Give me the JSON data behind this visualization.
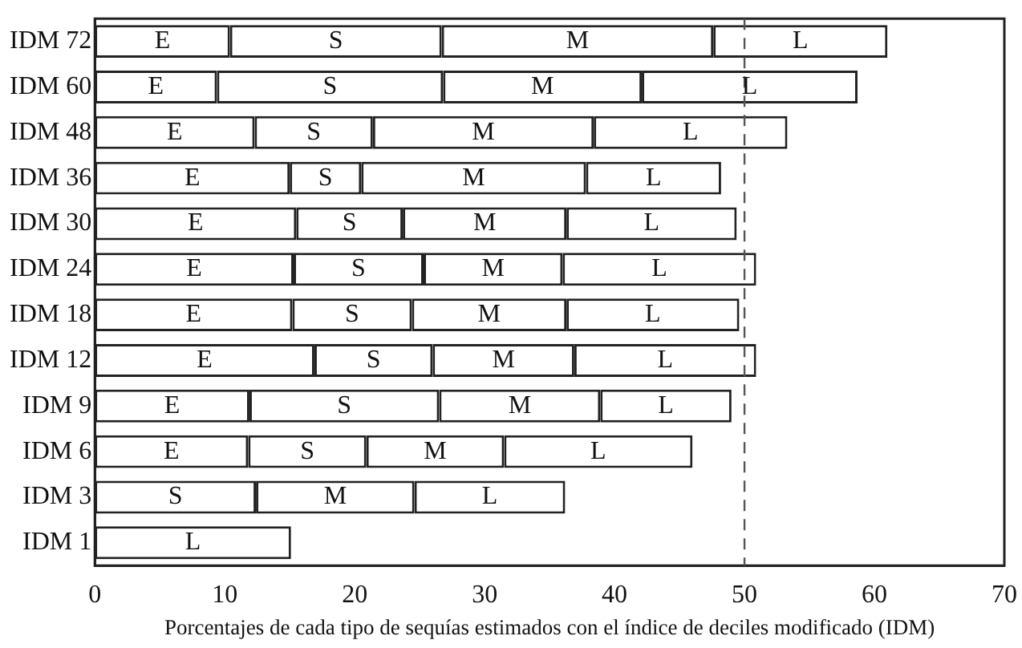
{
  "chart_data": {
    "type": "bar",
    "orientation": "horizontal",
    "stacked": true,
    "xlabel": "Porcentajes de cada tipo de sequías estimados con el índice de deciles modificado (IDM)",
    "categories": [
      "IDM 72",
      "IDM 60",
      "IDM 48",
      "IDM 36",
      "IDM 30",
      "IDM 24",
      "IDM 18",
      "IDM 12",
      "IDM 9",
      "IDM 6",
      "IDM 3",
      "IDM 1"
    ],
    "series": [
      {
        "name": "E",
        "color": "#ffffff",
        "values": [
          10.4,
          9.4,
          12.3,
          15.0,
          15.5,
          15.3,
          15.2,
          16.9,
          11.9,
          11.8,
          null,
          null
        ]
      },
      {
        "name": "S",
        "color": "#ffffff",
        "values": [
          16.3,
          17.4,
          9.1,
          5.5,
          8.2,
          10.0,
          9.2,
          9.1,
          14.6,
          9.1,
          12.4,
          null
        ]
      },
      {
        "name": "M",
        "color": "#ffffff",
        "values": [
          20.9,
          15.3,
          17.0,
          17.3,
          12.6,
          10.7,
          11.9,
          10.9,
          12.4,
          10.6,
          12.2,
          null
        ]
      },
      {
        "name": "L",
        "color": "#ffffff",
        "values": [
          13.4,
          16.6,
          14.9,
          10.4,
          13.1,
          14.9,
          13.3,
          14.0,
          10.1,
          14.5,
          11.6,
          15.1
        ]
      }
    ],
    "xlim": [
      0,
      70
    ],
    "xticks": [
      0,
      10,
      20,
      30,
      40,
      50,
      60,
      70
    ],
    "ref_lines": [
      {
        "axis": "x",
        "value": 50,
        "line_style": "dashed",
        "color": "#555555"
      }
    ],
    "grid": false,
    "legend": false
  }
}
